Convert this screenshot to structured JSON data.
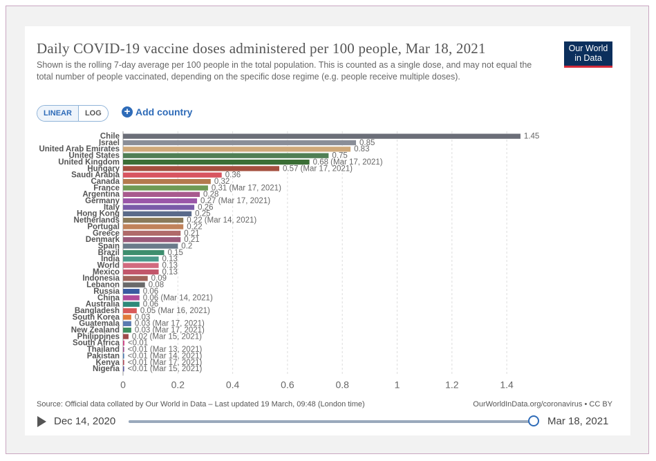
{
  "header": {
    "title": "Daily COVID-19 vaccine doses administered per 100 people, Mar 18, 2021",
    "subtitle": "Shown is the rolling 7-day average per 100 people in the total population. This is counted as a single dose, and may not equal the total number of people vaccinated, depending on the specific dose regime (e.g. people receive multiple doses).",
    "logo_line1": "Our World",
    "logo_line2": "in Data"
  },
  "controls": {
    "linear_label": "LINEAR",
    "log_label": "LOG",
    "add_country_label": "Add country",
    "plus_glyph": "+"
  },
  "footer": {
    "source": "Source: Official data collated by Our World in Data – Last updated 19 March, 09:48 (London time)",
    "license": "OurWorldInData.org/coronavirus • CC BY"
  },
  "timeline": {
    "start_label": "Dec 14, 2020",
    "end_label": "Mar 18, 2021",
    "position": 1.0
  },
  "chart_data": {
    "type": "bar",
    "orientation": "horizontal",
    "xlim": [
      0,
      1.5
    ],
    "xticks": [
      0,
      0.2,
      0.4,
      0.6,
      0.8,
      1,
      1.2,
      1.4
    ],
    "xtick_labels": [
      "0",
      "0.2",
      "0.4",
      "0.6",
      "0.8",
      "1",
      "1.2",
      "1.4"
    ],
    "grid": true,
    "bars": [
      {
        "name": "Chile",
        "value": 1.45,
        "label": "1.45",
        "color": "#6b6e78"
      },
      {
        "name": "Israel",
        "value": 0.85,
        "label": "0.85",
        "color": "#8a8e98"
      },
      {
        "name": "United Arab Emirates",
        "value": 0.83,
        "label": "0.83",
        "color": "#cfa97a"
      },
      {
        "name": "United States",
        "value": 0.75,
        "label": "0.75",
        "color": "#4f7f55"
      },
      {
        "name": "United Kingdom",
        "value": 0.68,
        "label": "0.68 (Mar 17, 2021)",
        "color": "#3a6e35"
      },
      {
        "name": "Hungary",
        "value": 0.57,
        "label": "0.57 (Mar 17, 2021)",
        "color": "#a44e3e"
      },
      {
        "name": "Saudi Arabia",
        "value": 0.36,
        "label": "0.36",
        "color": "#d85560"
      },
      {
        "name": "Canada",
        "value": 0.32,
        "label": "0.32",
        "color": "#b47a4e"
      },
      {
        "name": "France",
        "value": 0.31,
        "label": "0.31 (Mar 17, 2021)",
        "color": "#6f9a55"
      },
      {
        "name": "Argentina",
        "value": 0.28,
        "label": "0.28",
        "color": "#a85a8e"
      },
      {
        "name": "Germany",
        "value": 0.27,
        "label": "0.27 (Mar 17, 2021)",
        "color": "#9a56a8"
      },
      {
        "name": "Italy",
        "value": 0.26,
        "label": "0.26",
        "color": "#7a5aa8"
      },
      {
        "name": "Hong Kong",
        "value": 0.25,
        "label": "0.25",
        "color": "#5a6a8a"
      },
      {
        "name": "Netherlands",
        "value": 0.22,
        "label": "0.22 (Mar 14, 2021)",
        "color": "#8a7a5a"
      },
      {
        "name": "Portugal",
        "value": 0.22,
        "label": "0.22",
        "color": "#c0825a"
      },
      {
        "name": "Greece",
        "value": 0.21,
        "label": "0.21",
        "color": "#b06a6a"
      },
      {
        "name": "Denmark",
        "value": 0.21,
        "label": "0.21",
        "color": "#9a5a7a"
      },
      {
        "name": "Spain",
        "value": 0.2,
        "label": "0.2",
        "color": "#6a7a8a"
      },
      {
        "name": "Brazil",
        "value": 0.15,
        "label": "0.15",
        "color": "#3e8e6e"
      },
      {
        "name": "India",
        "value": 0.13,
        "label": "0.13",
        "color": "#4a9a8a"
      },
      {
        "name": "World",
        "value": 0.13,
        "label": "0.13",
        "color": "#d26a7e"
      },
      {
        "name": "Mexico",
        "value": 0.13,
        "label": "0.13",
        "color": "#c2566a"
      },
      {
        "name": "Indonesia",
        "value": 0.09,
        "label": "0.09",
        "color": "#a0645a"
      },
      {
        "name": "Lebanon",
        "value": 0.08,
        "label": "0.08",
        "color": "#6a6a6a"
      },
      {
        "name": "Russia",
        "value": 0.06,
        "label": "0.06",
        "color": "#3a5aa0"
      },
      {
        "name": "China",
        "value": 0.06,
        "label": "0.06 (Mar 14, 2021)",
        "color": "#b04a9a"
      },
      {
        "name": "Australia",
        "value": 0.06,
        "label": "0.06",
        "color": "#2e8a7a"
      },
      {
        "name": "Bangladesh",
        "value": 0.05,
        "label": "0.05 (Mar 16, 2021)",
        "color": "#d85a5a"
      },
      {
        "name": "South Korea",
        "value": 0.03,
        "label": "0.03",
        "color": "#e07a3a"
      },
      {
        "name": "Guatemala",
        "value": 0.03,
        "label": "0.03 (Mar 17, 2021)",
        "color": "#5a7ab0"
      },
      {
        "name": "New Zealand",
        "value": 0.03,
        "label": "0.03 (Mar 17, 2021)",
        "color": "#3e8e5e"
      },
      {
        "name": "Philippines",
        "value": 0.02,
        "label": "0.02 (Mar 15, 2021)",
        "color": "#a04a4a"
      },
      {
        "name": "South Africa",
        "value": 0.005,
        "label": "<0.01",
        "color": "#d04a8a"
      },
      {
        "name": "Thailand",
        "value": 0.004,
        "label": "<0.01 (Mar 13, 2021)",
        "color": "#9a4a8a"
      },
      {
        "name": "Pakistan",
        "value": 0.004,
        "label": "<0.01 (Mar 14, 2021)",
        "color": "#4a7ab0"
      },
      {
        "name": "Kenya",
        "value": 0.004,
        "label": "<0.01 (Mar 17, 2021)",
        "color": "#b04a5a"
      },
      {
        "name": "Nigeria",
        "value": 0.004,
        "label": "<0.01 (Mar 15, 2021)",
        "color": "#5a5aa0"
      }
    ]
  }
}
